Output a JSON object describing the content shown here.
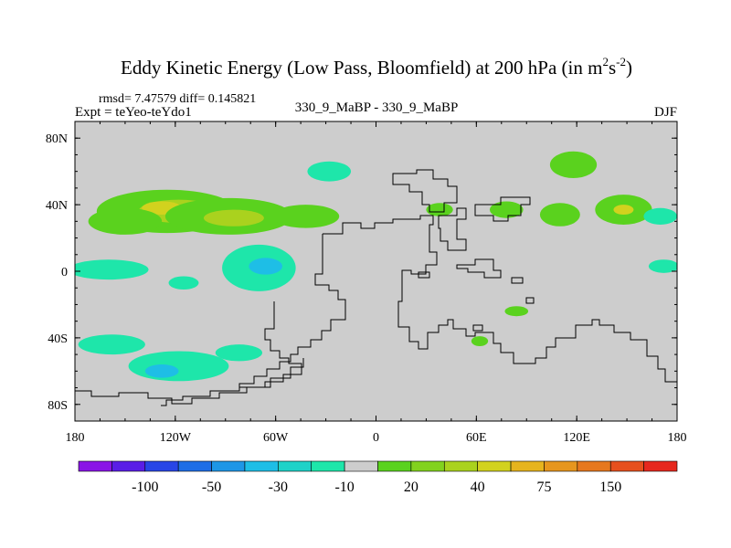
{
  "chart_data": {
    "type": "heatmap",
    "title": "Eddy Kinetic Energy (Low Pass, Bloomfield) at 200 hPa (in m",
    "title_sup1": "2",
    "title_mid": "s",
    "title_sup2": "-2",
    "title_end": ")",
    "stats": "rmsd= 7.47579 diff= 0.145821",
    "expt": "Expt = teYeo-teYdo1",
    "subtitle": "330_9_MaBP - 330_9_MaBP",
    "season": "DJF",
    "xlim": [
      -180,
      180
    ],
    "ylim": [
      -90,
      90
    ],
    "x_ticks": [
      {
        "value": -180,
        "label": "180"
      },
      {
        "value": -120,
        "label": "120W"
      },
      {
        "value": -60,
        "label": "60W"
      },
      {
        "value": 0,
        "label": "0"
      },
      {
        "value": 60,
        "label": "60E"
      },
      {
        "value": 120,
        "label": "120E"
      },
      {
        "value": 180,
        "label": "180"
      }
    ],
    "y_ticks": [
      {
        "value": 80,
        "label": "80N"
      },
      {
        "value": 40,
        "label": "40N"
      },
      {
        "value": 0,
        "label": "0"
      },
      {
        "value": -40,
        "label": "40S"
      },
      {
        "value": -80,
        "label": "80S"
      }
    ],
    "colorbar": {
      "colors": [
        "#8a14e6",
        "#5a1ee6",
        "#2846e6",
        "#1e6ee6",
        "#1e96e6",
        "#1ebee6",
        "#1ed2c8",
        "#1ee6aa",
        "#cdcdcd",
        "#5ad21e",
        "#82d21e",
        "#aad21e",
        "#d2d21e",
        "#e6b41e",
        "#e6961e",
        "#e6781e",
        "#e6501e",
        "#e6281e"
      ],
      "labels": [
        {
          "after_index": 1,
          "label": "-100"
        },
        {
          "after_index": 3,
          "label": "-50"
        },
        {
          "after_index": 5,
          "label": "-30"
        },
        {
          "after_index": 7,
          "label": "-10"
        },
        {
          "after_index": 9,
          "label": "20"
        },
        {
          "after_index": 11,
          "label": "40"
        },
        {
          "after_index": 13,
          "label": "75"
        },
        {
          "after_index": 15,
          "label": "150"
        }
      ]
    },
    "anomalies": [
      {
        "lon": -125,
        "lat": 36,
        "rlon": 42,
        "rlat": 13,
        "level": 15
      },
      {
        "lon": -118,
        "lat": 36,
        "rlon": 24,
        "rlat": 7,
        "level": 30
      },
      {
        "lon": -128,
        "lat": 38,
        "rlon": 12,
        "rlat": 4,
        "level": 40
      },
      {
        "lon": -88,
        "lat": 33,
        "rlon": 38,
        "rlat": 11,
        "level": 15
      },
      {
        "lon": -85,
        "lat": 32,
        "rlon": 18,
        "rlat": 5,
        "level": 30
      },
      {
        "lon": -42,
        "lat": 33,
        "rlon": 20,
        "rlat": 7,
        "level": 15
      },
      {
        "lon": -150,
        "lat": 30,
        "rlon": 22,
        "rlat": 8,
        "level": 15
      },
      {
        "lon": -28,
        "lat": 60,
        "rlon": 13,
        "rlat": 6,
        "level": -10
      },
      {
        "lon": -70,
        "lat": 2,
        "rlon": 22,
        "rlat": 14,
        "level": -10
      },
      {
        "lon": -66,
        "lat": 3,
        "rlon": 10,
        "rlat": 5,
        "level": -30
      },
      {
        "lon": -160,
        "lat": 1,
        "rlon": 24,
        "rlat": 6,
        "level": -10
      },
      {
        "lon": -115,
        "lat": -7,
        "rlon": 9,
        "rlat": 4,
        "level": -10
      },
      {
        "lon": -158,
        "lat": -44,
        "rlon": 20,
        "rlat": 6,
        "level": -10
      },
      {
        "lon": -118,
        "lat": -57,
        "rlon": 30,
        "rlat": 9,
        "level": -10
      },
      {
        "lon": -128,
        "lat": -60,
        "rlon": 10,
        "rlat": 4,
        "level": -30
      },
      {
        "lon": -82,
        "lat": -49,
        "rlon": 14,
        "rlat": 5,
        "level": -10
      },
      {
        "lon": 118,
        "lat": 64,
        "rlon": 14,
        "rlat": 8,
        "level": 15
      },
      {
        "lon": 110,
        "lat": 34,
        "rlon": 12,
        "rlat": 7,
        "level": 15
      },
      {
        "lon": 148,
        "lat": 37,
        "rlon": 17,
        "rlat": 9,
        "level": 15
      },
      {
        "lon": 148,
        "lat": 37,
        "rlon": 6,
        "rlat": 3,
        "level": 40
      },
      {
        "lon": 170,
        "lat": 33,
        "rlon": 10,
        "rlat": 5,
        "level": -10
      },
      {
        "lon": 172,
        "lat": 3,
        "rlon": 9,
        "rlat": 4,
        "level": -10
      },
      {
        "lon": 38,
        "lat": 37,
        "rlon": 8,
        "rlat": 4,
        "level": 15
      },
      {
        "lon": 78,
        "lat": 37,
        "rlon": 10,
        "rlat": 5,
        "level": 15
      },
      {
        "lon": 84,
        "lat": -24,
        "rlon": 7,
        "rlat": 3,
        "level": 15
      },
      {
        "lon": 62,
        "lat": -42,
        "rlon": 5,
        "rlat": 3,
        "level": 15
      }
    ]
  }
}
